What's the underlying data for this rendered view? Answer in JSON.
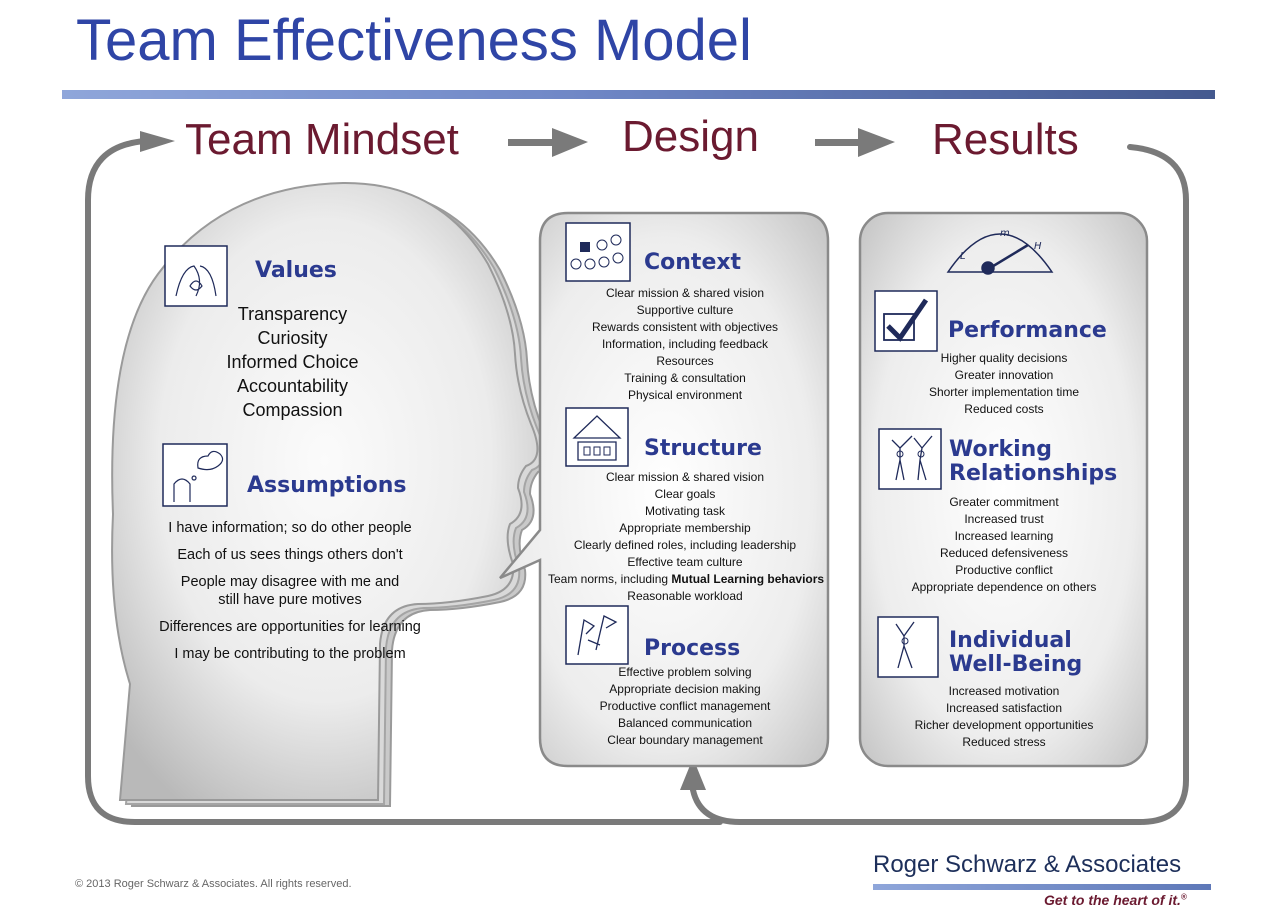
{
  "title": "Team Effectiveness Model",
  "stages": [
    "Team Mindset",
    "Design",
    "Results"
  ],
  "mindset": {
    "values_title": "Values",
    "values": [
      "Transparency",
      "Curiosity",
      "Informed Choice",
      "Accountability",
      "Compassion"
    ],
    "assumptions_title": "Assumptions",
    "assumptions": [
      "I have information; so do other people",
      "Each of us sees things others don't",
      "People may disagree with me and still have pure motives",
      "Differences are opportunities for learning",
      "I may be contributing to the problem"
    ]
  },
  "design": {
    "context_title": "Context",
    "context": [
      "Clear mission & shared vision",
      "Supportive culture",
      "Rewards consistent with objectives",
      "Information, including feedback",
      "Resources",
      "Training & consultation",
      "Physical environment"
    ],
    "structure_title": "Structure",
    "structure_pre": [
      "Clear mission & shared vision",
      "Clear goals",
      "Motivating task",
      "Appropriate membership",
      "Clearly defined roles, including leadership",
      "Effective team culture"
    ],
    "structure_norms_prefix": "Team norms, including ",
    "structure_norms_bold": "Mutual Learning behaviors",
    "structure_post": [
      "Reasonable workload"
    ],
    "process_title": "Process",
    "process": [
      "Effective problem solving",
      "Appropriate decision making",
      "Productive conflict management",
      "Balanced communication",
      "Clear boundary management"
    ]
  },
  "results": {
    "gauge_labels": [
      "L",
      "m",
      "H"
    ],
    "performance_title": "Performance",
    "performance": [
      "Higher quality decisions",
      "Greater innovation",
      "Shorter implementation time",
      "Reduced costs"
    ],
    "relationships_title_1": "Working",
    "relationships_title_2": "Relationships",
    "relationships": [
      "Greater commitment",
      "Increased trust",
      "Increased learning",
      "Reduced defensiveness",
      "Productive conflict",
      "Appropriate dependence on others"
    ],
    "wellbeing_title_1": "Individual",
    "wellbeing_title_2": "Well-Being",
    "wellbeing": [
      "Increased motivation",
      "Increased satisfaction",
      "Richer development opportunities",
      "Reduced stress"
    ]
  },
  "footer": {
    "copyright": "© 2013 Roger Schwarz & Associates. All rights reserved.",
    "company": "Roger Schwarz & Associates",
    "tagline": "Get to the heart of it.",
    "trademark": "®"
  },
  "colors": {
    "title": "#2f45a6",
    "stage": "#6b1a30",
    "panel_title": "#2b3a8f",
    "arrow": "#7a7a7a"
  }
}
